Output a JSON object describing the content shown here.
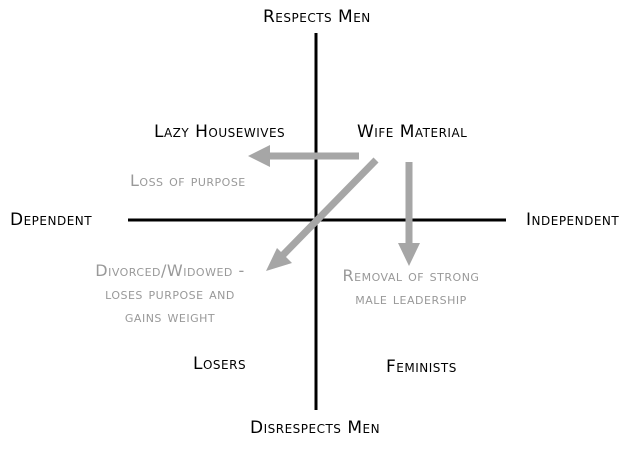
{
  "colors": {
    "axis": "#000000",
    "arrow": "#a6a6a6",
    "note_text": "#999999",
    "label_text": "#000000",
    "background": "#ffffff"
  },
  "axes": {
    "top": "Respects Men",
    "bottom": "Disrespects Men",
    "left": "Dependent",
    "right": "Independent"
  },
  "quadrants": {
    "top_left": "Lazy Housewives",
    "top_right": "Wife Material",
    "bottom_left": "Losers",
    "bottom_right": "Feminists"
  },
  "transitions": {
    "loss_of_purpose": "Loss of purpose",
    "divorced": [
      "Divorced/Widowed -",
      "loses purpose and",
      "gains weight"
    ],
    "removal": [
      "Removal of strong",
      "male leadership"
    ]
  }
}
